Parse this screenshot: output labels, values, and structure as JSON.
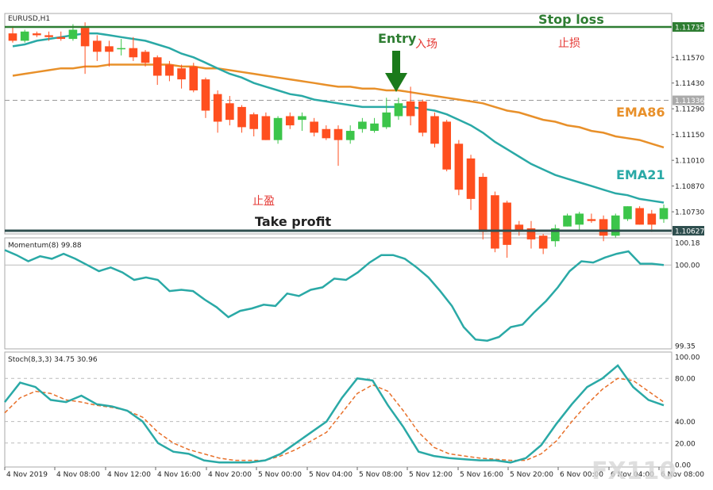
{
  "chart_data": [
    {
      "type": "candlestick",
      "symbol": "EURUSD,H1",
      "y_ticks": [
        "1.11735",
        "1.11570",
        "1.11430",
        "1.11336",
        "1.11290",
        "1.11150",
        "1.11010",
        "1.10870",
        "1.10730",
        "1.10627"
      ],
      "ylim": [
        1.10627,
        1.11735
      ],
      "current_price": "1.11336",
      "stop_loss_level": "1.11735",
      "take_profit_level": "1.10627",
      "annotations": {
        "stop_loss": "Stop loss",
        "stop_loss_cn": "止损",
        "entry": "Entry",
        "entry_cn": "入场",
        "take_profit": "Take profit",
        "take_profit_cn": "止盈",
        "ema86": "EMA86",
        "ema21": "EMA21"
      },
      "candles": [
        {
          "o": 1.117,
          "h": 1.1174,
          "l": 1.1165,
          "c": 1.1166
        },
        {
          "o": 1.1166,
          "h": 1.1172,
          "l": 1.1165,
          "c": 1.1171
        },
        {
          "o": 1.117,
          "h": 1.1171,
          "l": 1.1168,
          "c": 1.1169
        },
        {
          "o": 1.1169,
          "h": 1.1171,
          "l": 1.1166,
          "c": 1.1168
        },
        {
          "o": 1.1168,
          "h": 1.1171,
          "l": 1.1166,
          "c": 1.1167
        },
        {
          "o": 1.1167,
          "h": 1.1175,
          "l": 1.1166,
          "c": 1.1172
        },
        {
          "o": 1.1173,
          "h": 1.1176,
          "l": 1.1148,
          "c": 1.1163
        },
        {
          "o": 1.1166,
          "h": 1.1169,
          "l": 1.1155,
          "c": 1.116
        },
        {
          "o": 1.1163,
          "h": 1.1166,
          "l": 1.1152,
          "c": 1.116
        },
        {
          "o": 1.1162,
          "h": 1.1167,
          "l": 1.1158,
          "c": 1.1162
        },
        {
          "o": 1.1162,
          "h": 1.1168,
          "l": 1.1155,
          "c": 1.1157
        },
        {
          "o": 1.116,
          "h": 1.1161,
          "l": 1.1152,
          "c": 1.1154
        },
        {
          "o": 1.1157,
          "h": 1.1158,
          "l": 1.1142,
          "c": 1.1147
        },
        {
          "o": 1.1153,
          "h": 1.1155,
          "l": 1.1144,
          "c": 1.1147
        },
        {
          "o": 1.1151,
          "h": 1.1153,
          "l": 1.114,
          "c": 1.1145
        },
        {
          "o": 1.1152,
          "h": 1.1154,
          "l": 1.1138,
          "c": 1.1139
        },
        {
          "o": 1.1145,
          "h": 1.1146,
          "l": 1.1124,
          "c": 1.1128
        },
        {
          "o": 1.1137,
          "h": 1.1139,
          "l": 1.1116,
          "c": 1.1122
        },
        {
          "o": 1.1132,
          "h": 1.1136,
          "l": 1.112,
          "c": 1.1123
        },
        {
          "o": 1.113,
          "h": 1.1131,
          "l": 1.1116,
          "c": 1.1119
        },
        {
          "o": 1.1126,
          "h": 1.1127,
          "l": 1.1114,
          "c": 1.1118
        },
        {
          "o": 1.1125,
          "h": 1.1127,
          "l": 1.1112,
          "c": 1.1112
        },
        {
          "o": 1.1112,
          "h": 1.1125,
          "l": 1.111,
          "c": 1.1124
        },
        {
          "o": 1.1125,
          "h": 1.1127,
          "l": 1.1118,
          "c": 1.112
        },
        {
          "o": 1.1123,
          "h": 1.1127,
          "l": 1.1117,
          "c": 1.1125
        },
        {
          "o": 1.1122,
          "h": 1.1124,
          "l": 1.1114,
          "c": 1.1116
        },
        {
          "o": 1.1118,
          "h": 1.112,
          "l": 1.1112,
          "c": 1.1113
        },
        {
          "o": 1.1118,
          "h": 1.112,
          "l": 1.1098,
          "c": 1.1112
        },
        {
          "o": 1.1112,
          "h": 1.112,
          "l": 1.111,
          "c": 1.1117
        },
        {
          "o": 1.1118,
          "h": 1.1124,
          "l": 1.1116,
          "c": 1.1122
        },
        {
          "o": 1.1117,
          "h": 1.1124,
          "l": 1.1116,
          "c": 1.1121
        },
        {
          "o": 1.1119,
          "h": 1.1135,
          "l": 1.1118,
          "c": 1.1127
        },
        {
          "o": 1.1125,
          "h": 1.1135,
          "l": 1.1123,
          "c": 1.1132
        },
        {
          "o": 1.1133,
          "h": 1.1141,
          "l": 1.112,
          "c": 1.1125
        },
        {
          "o": 1.1133,
          "h": 1.1134,
          "l": 1.1114,
          "c": 1.1116
        },
        {
          "o": 1.1125,
          "h": 1.1127,
          "l": 1.1108,
          "c": 1.111
        },
        {
          "o": 1.1122,
          "h": 1.1123,
          "l": 1.1095,
          "c": 1.1096
        },
        {
          "o": 1.111,
          "h": 1.1112,
          "l": 1.1082,
          "c": 1.1085
        },
        {
          "o": 1.1102,
          "h": 1.1104,
          "l": 1.1074,
          "c": 1.108
        },
        {
          "o": 1.1092,
          "h": 1.1094,
          "l": 1.1058,
          "c": 1.1062
        },
        {
          "o": 1.1082,
          "h": 1.1084,
          "l": 1.1051,
          "c": 1.1053
        },
        {
          "o": 1.1078,
          "h": 1.1079,
          "l": 1.1048,
          "c": 1.1055
        },
        {
          "o": 1.1066,
          "h": 1.1068,
          "l": 1.106,
          "c": 1.1063
        },
        {
          "o": 1.1064,
          "h": 1.1068,
          "l": 1.1053,
          "c": 1.1058
        },
        {
          "o": 1.106,
          "h": 1.1061,
          "l": 1.105,
          "c": 1.1053
        },
        {
          "o": 1.1057,
          "h": 1.1066,
          "l": 1.1054,
          "c": 1.1064
        },
        {
          "o": 1.1065,
          "h": 1.1072,
          "l": 1.1065,
          "c": 1.1071
        },
        {
          "o": 1.1066,
          "h": 1.1073,
          "l": 1.1063,
          "c": 1.1072
        },
        {
          "o": 1.1069,
          "h": 1.1072,
          "l": 1.1067,
          "c": 1.1068
        },
        {
          "o": 1.1069,
          "h": 1.1071,
          "l": 1.1057,
          "c": 1.106
        },
        {
          "o": 1.106,
          "h": 1.1072,
          "l": 1.1059,
          "c": 1.1071
        },
        {
          "o": 1.1069,
          "h": 1.1076,
          "l": 1.1068,
          "c": 1.1076
        },
        {
          "o": 1.1075,
          "h": 1.1076,
          "l": 1.1066,
          "c": 1.1066
        },
        {
          "o": 1.1072,
          "h": 1.1074,
          "l": 1.1062,
          "c": 1.1066
        },
        {
          "o": 1.1069,
          "h": 1.1077,
          "l": 1.1067,
          "c": 1.1075
        }
      ],
      "ema21": [
        1.1163,
        1.1164,
        1.1166,
        1.1167,
        1.1168,
        1.1169,
        1.117,
        1.117,
        1.1169,
        1.1168,
        1.1167,
        1.1166,
        1.1164,
        1.1162,
        1.1159,
        1.1157,
        1.1154,
        1.1151,
        1.1148,
        1.1146,
        1.1143,
        1.1141,
        1.1139,
        1.1137,
        1.1136,
        1.1134,
        1.1133,
        1.1132,
        1.1131,
        1.113,
        1.113,
        1.113,
        1.113,
        1.113,
        1.1129,
        1.1128,
        1.1126,
        1.1123,
        1.112,
        1.1116,
        1.1111,
        1.1107,
        1.1103,
        1.1099,
        1.1096,
        1.1093,
        1.1091,
        1.1089,
        1.1087,
        1.1085,
        1.1083,
        1.1082,
        1.108,
        1.1079,
        1.1078
      ],
      "ema86": [
        1.1147,
        1.1148,
        1.1149,
        1.115,
        1.1151,
        1.1151,
        1.1152,
        1.1152,
        1.1153,
        1.1153,
        1.1153,
        1.1153,
        1.1153,
        1.1153,
        1.1152,
        1.1152,
        1.1151,
        1.1151,
        1.115,
        1.1149,
        1.1148,
        1.1147,
        1.1146,
        1.1145,
        1.1144,
        1.1143,
        1.1142,
        1.1141,
        1.1141,
        1.114,
        1.114,
        1.1139,
        1.1139,
        1.1138,
        1.1137,
        1.1136,
        1.1135,
        1.1134,
        1.1133,
        1.1132,
        1.113,
        1.1128,
        1.1127,
        1.1125,
        1.1123,
        1.1122,
        1.112,
        1.1119,
        1.1117,
        1.1116,
        1.1114,
        1.1113,
        1.1112,
        1.111,
        1.1108
      ]
    },
    {
      "type": "line",
      "title": "Momentum(8) 99.88",
      "y_ticks": [
        "100.18",
        "100.00",
        "99.35"
      ],
      "ylim": [
        99.35,
        100.18
      ],
      "reference_level": 100.0,
      "values": [
        100.12,
        100.08,
        100.03,
        100.07,
        100.05,
        100.09,
        100.05,
        100.0,
        99.95,
        99.98,
        99.94,
        99.88,
        99.9,
        99.88,
        99.79,
        99.8,
        99.79,
        99.72,
        99.66,
        99.58,
        99.63,
        99.65,
        99.68,
        99.67,
        99.77,
        99.75,
        99.8,
        99.82,
        99.89,
        99.88,
        99.94,
        100.02,
        100.08,
        100.08,
        100.05,
        99.98,
        99.9,
        99.79,
        99.67,
        99.5,
        99.4,
        99.39,
        99.42,
        99.5,
        99.52,
        99.62,
        99.71,
        99.82,
        99.95,
        100.03,
        100.02,
        100.06,
        100.09,
        100.11,
        100.01,
        100.01,
        100.0
      ]
    },
    {
      "type": "line",
      "title": "Stoch(8,3,3) 34.75 30.96",
      "y_ticks": [
        "100.00",
        "80.00",
        "40.00",
        "20.00",
        "0.00"
      ],
      "ylim": [
        0,
        100
      ],
      "main_line": [
        58,
        76,
        72,
        60,
        58,
        64,
        56,
        54,
        50,
        40,
        20,
        12,
        10,
        4,
        2,
        2,
        2,
        4,
        10,
        20,
        30,
        40,
        62,
        80,
        78,
        55,
        35,
        12,
        8,
        6,
        5,
        4,
        4,
        2,
        6,
        18,
        38,
        56,
        72,
        80,
        92,
        72,
        60,
        55
      ],
      "signal_line": [
        48,
        62,
        68,
        66,
        60,
        58,
        55,
        53,
        50,
        44,
        30,
        20,
        14,
        10,
        6,
        4,
        4,
        4,
        8,
        14,
        22,
        30,
        48,
        66,
        74,
        68,
        50,
        30,
        16,
        10,
        8,
        6,
        5,
        4,
        4,
        10,
        22,
        40,
        56,
        70,
        80,
        78,
        68,
        58
      ]
    }
  ],
  "x_axis": {
    "labels": [
      "4 Nov 2019",
      "4 Nov 08:00",
      "4 Nov 12:00",
      "4 Nov 16:00",
      "4 Nov 20:00",
      "5 Nov 00:00",
      "5 Nov 04:00",
      "5 Nov 08:00",
      "5 Nov 12:00",
      "5 Nov 16:00",
      "5 Nov 20:00",
      "6 Nov 00:00",
      "6 Nov 04:00",
      "6 Nov 08:00"
    ]
  },
  "watermark": "FX110"
}
